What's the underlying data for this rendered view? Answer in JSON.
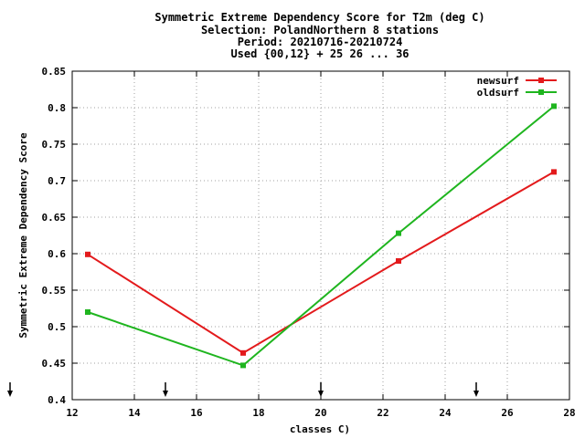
{
  "chart_data": {
    "type": "line",
    "title_lines": [
      "Symmetric Extreme Dependency Score  for T2m (deg C)",
      "Selection: PolandNorthern      8 stations",
      "Period: 20210716-20210724",
      "Used {00,12} + 25 26 ... 36"
    ],
    "xlabel": "classes C)",
    "ylabel": "Symmetric Extreme Dependency Score",
    "xlim": [
      12,
      28
    ],
    "ylim": [
      0.4,
      0.85
    ],
    "xticks": [
      12,
      14,
      16,
      18,
      20,
      22,
      24,
      26,
      28
    ],
    "yticks": [
      0.4,
      0.45,
      0.5,
      0.55,
      0.6,
      0.65,
      0.7,
      0.75,
      0.8,
      0.85
    ],
    "xtick_labels": [
      "12",
      "14",
      "16",
      "18",
      "20",
      "22",
      "24",
      "26",
      "28"
    ],
    "ytick_labels": [
      "0.4",
      "0.45",
      "0.5",
      "0.55",
      "0.6",
      "0.65",
      "0.7",
      "0.75",
      "0.8",
      "0.85"
    ],
    "grid": true,
    "legend_position": "top-right",
    "x": [
      12.5,
      17.5,
      22.5,
      27.5
    ],
    "series": [
      {
        "name": "newsurf",
        "color": "#e31a1c",
        "values": [
          0.599,
          0.464,
          0.59,
          0.712
        ]
      },
      {
        "name": "oldsurf",
        "color": "#1fb51f",
        "values": [
          0.52,
          0.447,
          0.628,
          0.802
        ]
      }
    ],
    "arrow_markers_x": [
      10,
      15,
      20,
      25
    ]
  }
}
